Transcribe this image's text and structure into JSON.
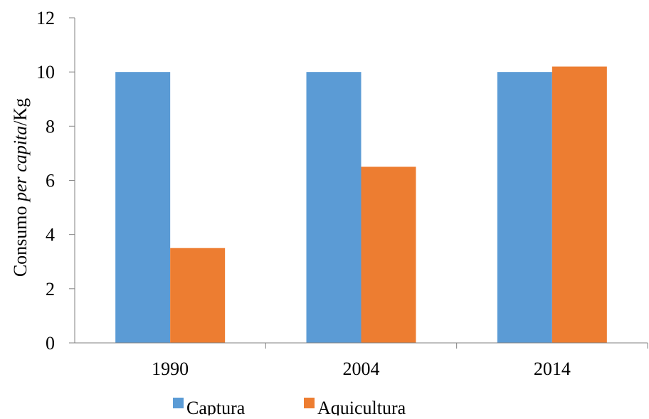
{
  "chart_data": {
    "type": "bar",
    "categories": [
      "1990",
      "2004",
      "2014"
    ],
    "series": [
      {
        "name": "Captura",
        "values": [
          10,
          10,
          10
        ],
        "color": "#5B9BD5"
      },
      {
        "name": "Aquicultura",
        "values": [
          3.5,
          6.5,
          10.2
        ],
        "color": "#ED7D31"
      }
    ],
    "ylabel": {
      "prefix": "Consumo ",
      "italic": "per capita",
      "suffix": "/Kg"
    },
    "ylim": [
      0,
      12
    ],
    "yticks": [
      "0",
      "2",
      "4",
      "6",
      "8",
      "10",
      "12"
    ],
    "grid": false,
    "legend_position": "bottom"
  }
}
